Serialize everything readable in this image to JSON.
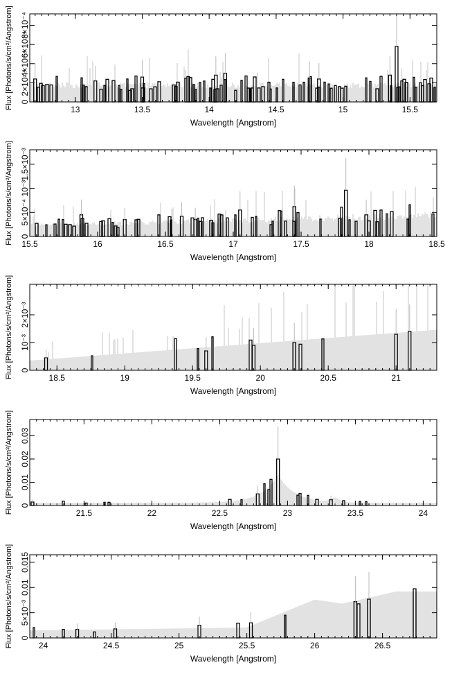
{
  "chart_data": [
    {
      "type": "histogram",
      "xlabel": "Wavelength [Angstrom]",
      "ylabel": "Flux [Photons/s/cm²/Angstrom]",
      "xlim": [
        12.66,
        15.7
      ],
      "ylim": [
        0,
        0.00092
      ],
      "xticks": [
        {
          "v": 13,
          "label": "13"
        },
        {
          "v": 13.5,
          "label": "13.5"
        },
        {
          "v": 14,
          "label": "14"
        },
        {
          "v": 14.5,
          "label": "14.5"
        },
        {
          "v": 15,
          "label": "15"
        },
        {
          "v": 15.5,
          "label": "15.5"
        }
      ],
      "yticks": [
        {
          "v": 0,
          "label": "0"
        },
        {
          "v": 0.0002,
          "label": "2×10⁻⁴"
        },
        {
          "v": 0.0004,
          "label": "4×10⁻⁴"
        },
        {
          "v": 0.0006,
          "label": "6×10⁻⁴"
        },
        {
          "v": 0.0008,
          "label": "8×10⁻⁴"
        }
      ],
      "peaks": [
        [
          12.7,
          0.00024
        ],
        [
          13.15,
          0.00022
        ],
        [
          13.5,
          0.00026
        ],
        [
          14.05,
          0.00028
        ],
        [
          14.12,
          0.0003
        ],
        [
          14.75,
          0.00025
        ],
        [
          14.82,
          0.00024
        ],
        [
          15.35,
          0.00028
        ],
        [
          15.4,
          0.00058
        ]
      ]
    },
    {
      "type": "histogram",
      "xlabel": "Wavelength [Angstrom]",
      "ylabel": "Flux [Photons/s/cm²/Angstrom]",
      "xlim": [
        15.5,
        18.5
      ],
      "ylim": [
        0,
        0.0018
      ],
      "xticks": [
        {
          "v": 15.5,
          "label": "15.5"
        },
        {
          "v": 16,
          "label": "16"
        },
        {
          "v": 16.5,
          "label": "16.5"
        },
        {
          "v": 17,
          "label": "17"
        },
        {
          "v": 17.5,
          "label": "17.5"
        },
        {
          "v": 18,
          "label": "18"
        },
        {
          "v": 18.5,
          "label": "18.5"
        }
      ],
      "yticks": [
        {
          "v": 0,
          "label": "0"
        },
        {
          "v": 0.0005,
          "label": "5×10⁻⁴"
        },
        {
          "v": 0.001,
          "label": "10⁻³"
        },
        {
          "v": 0.0015,
          "label": "1.5×10⁻³"
        }
      ],
      "peaks": [
        [
          15.88,
          0.00045
        ],
        [
          16.2,
          0.00035
        ],
        [
          16.62,
          0.00042
        ],
        [
          16.72,
          0.00035
        ],
        [
          17.05,
          0.00055
        ],
        [
          17.45,
          0.00062
        ],
        [
          17.83,
          0.00096
        ],
        [
          17.98,
          0.00045
        ]
      ]
    },
    {
      "type": "histogram",
      "xlabel": "Wavelength [Angstrom]",
      "ylabel": "Flux [Photons/s/cm²/Angstrom]",
      "xlim": [
        18.3,
        21.3
      ],
      "ylim": [
        0,
        0.0031
      ],
      "xticks": [
        {
          "v": 18.5,
          "label": "18.5"
        },
        {
          "v": 19,
          "label": "19"
        },
        {
          "v": 19.5,
          "label": "19.5"
        },
        {
          "v": 20,
          "label": "20"
        },
        {
          "v": 20.5,
          "label": "20.5"
        },
        {
          "v": 21,
          "label": "21"
        }
      ],
      "yticks": [
        {
          "v": 0,
          "label": "0"
        },
        {
          "v": 0.001,
          "label": "10⁻³"
        },
        {
          "v": 0.002,
          "label": "2×10⁻³"
        }
      ],
      "peaks": [
        [
          18.42,
          0.00045
        ],
        [
          19.6,
          0.0007
        ],
        [
          19.95,
          0.0009
        ],
        [
          20.25,
          0.001
        ],
        [
          21.0,
          0.0013
        ],
        [
          21.1,
          0.0014
        ]
      ]
    },
    {
      "type": "histogram",
      "xlabel": "Wavelength [Angstrom]",
      "ylabel": "Flux [Photons/s/cm²/Angstrom]",
      "xlim": [
        21.1,
        24.1
      ],
      "ylim": [
        0,
        0.037
      ],
      "xticks": [
        {
          "v": 21.5,
          "label": "21.5"
        },
        {
          "v": 22,
          "label": "22"
        },
        {
          "v": 22.5,
          "label": "22.5"
        },
        {
          "v": 23,
          "label": "23"
        },
        {
          "v": 23.5,
          "label": "23.5"
        },
        {
          "v": 24,
          "label": "24"
        }
      ],
      "yticks": [
        {
          "v": 0,
          "label": "0"
        },
        {
          "v": 0.01,
          "label": "0.01"
        },
        {
          "v": 0.02,
          "label": "0.02"
        },
        {
          "v": 0.03,
          "label": "0.03"
        }
      ],
      "peaks": [
        [
          21.12,
          0.0015
        ],
        [
          22.78,
          0.005
        ],
        [
          22.93,
          0.02
        ],
        [
          23.32,
          0.0025
        ]
      ]
    },
    {
      "type": "histogram",
      "xlabel": "Wavelength [Angstrom]",
      "ylabel": "Flux [Photons/s/cm²/Angstrom]",
      "xlim": [
        23.9,
        26.9
      ],
      "ylim": [
        0,
        0.0165
      ],
      "xticks": [
        {
          "v": 24,
          "label": "24"
        },
        {
          "v": 24.5,
          "label": "24.5"
        },
        {
          "v": 25,
          "label": "25"
        },
        {
          "v": 25.5,
          "label": "25.5"
        },
        {
          "v": 26,
          "label": "26"
        },
        {
          "v": 26.5,
          "label": "26.5"
        }
      ],
      "yticks": [
        {
          "v": 0,
          "label": "0"
        },
        {
          "v": 0.005,
          "label": "5×10⁻³"
        },
        {
          "v": 0.01,
          "label": "0.01"
        },
        {
          "v": 0.015,
          "label": "0.015"
        }
      ],
      "peaks": [
        [
          24.25,
          0.0017
        ],
        [
          24.53,
          0.0018
        ],
        [
          25.15,
          0.0025
        ],
        [
          25.53,
          0.003
        ],
        [
          26.3,
          0.0072
        ],
        [
          26.4,
          0.0077
        ]
      ]
    }
  ]
}
